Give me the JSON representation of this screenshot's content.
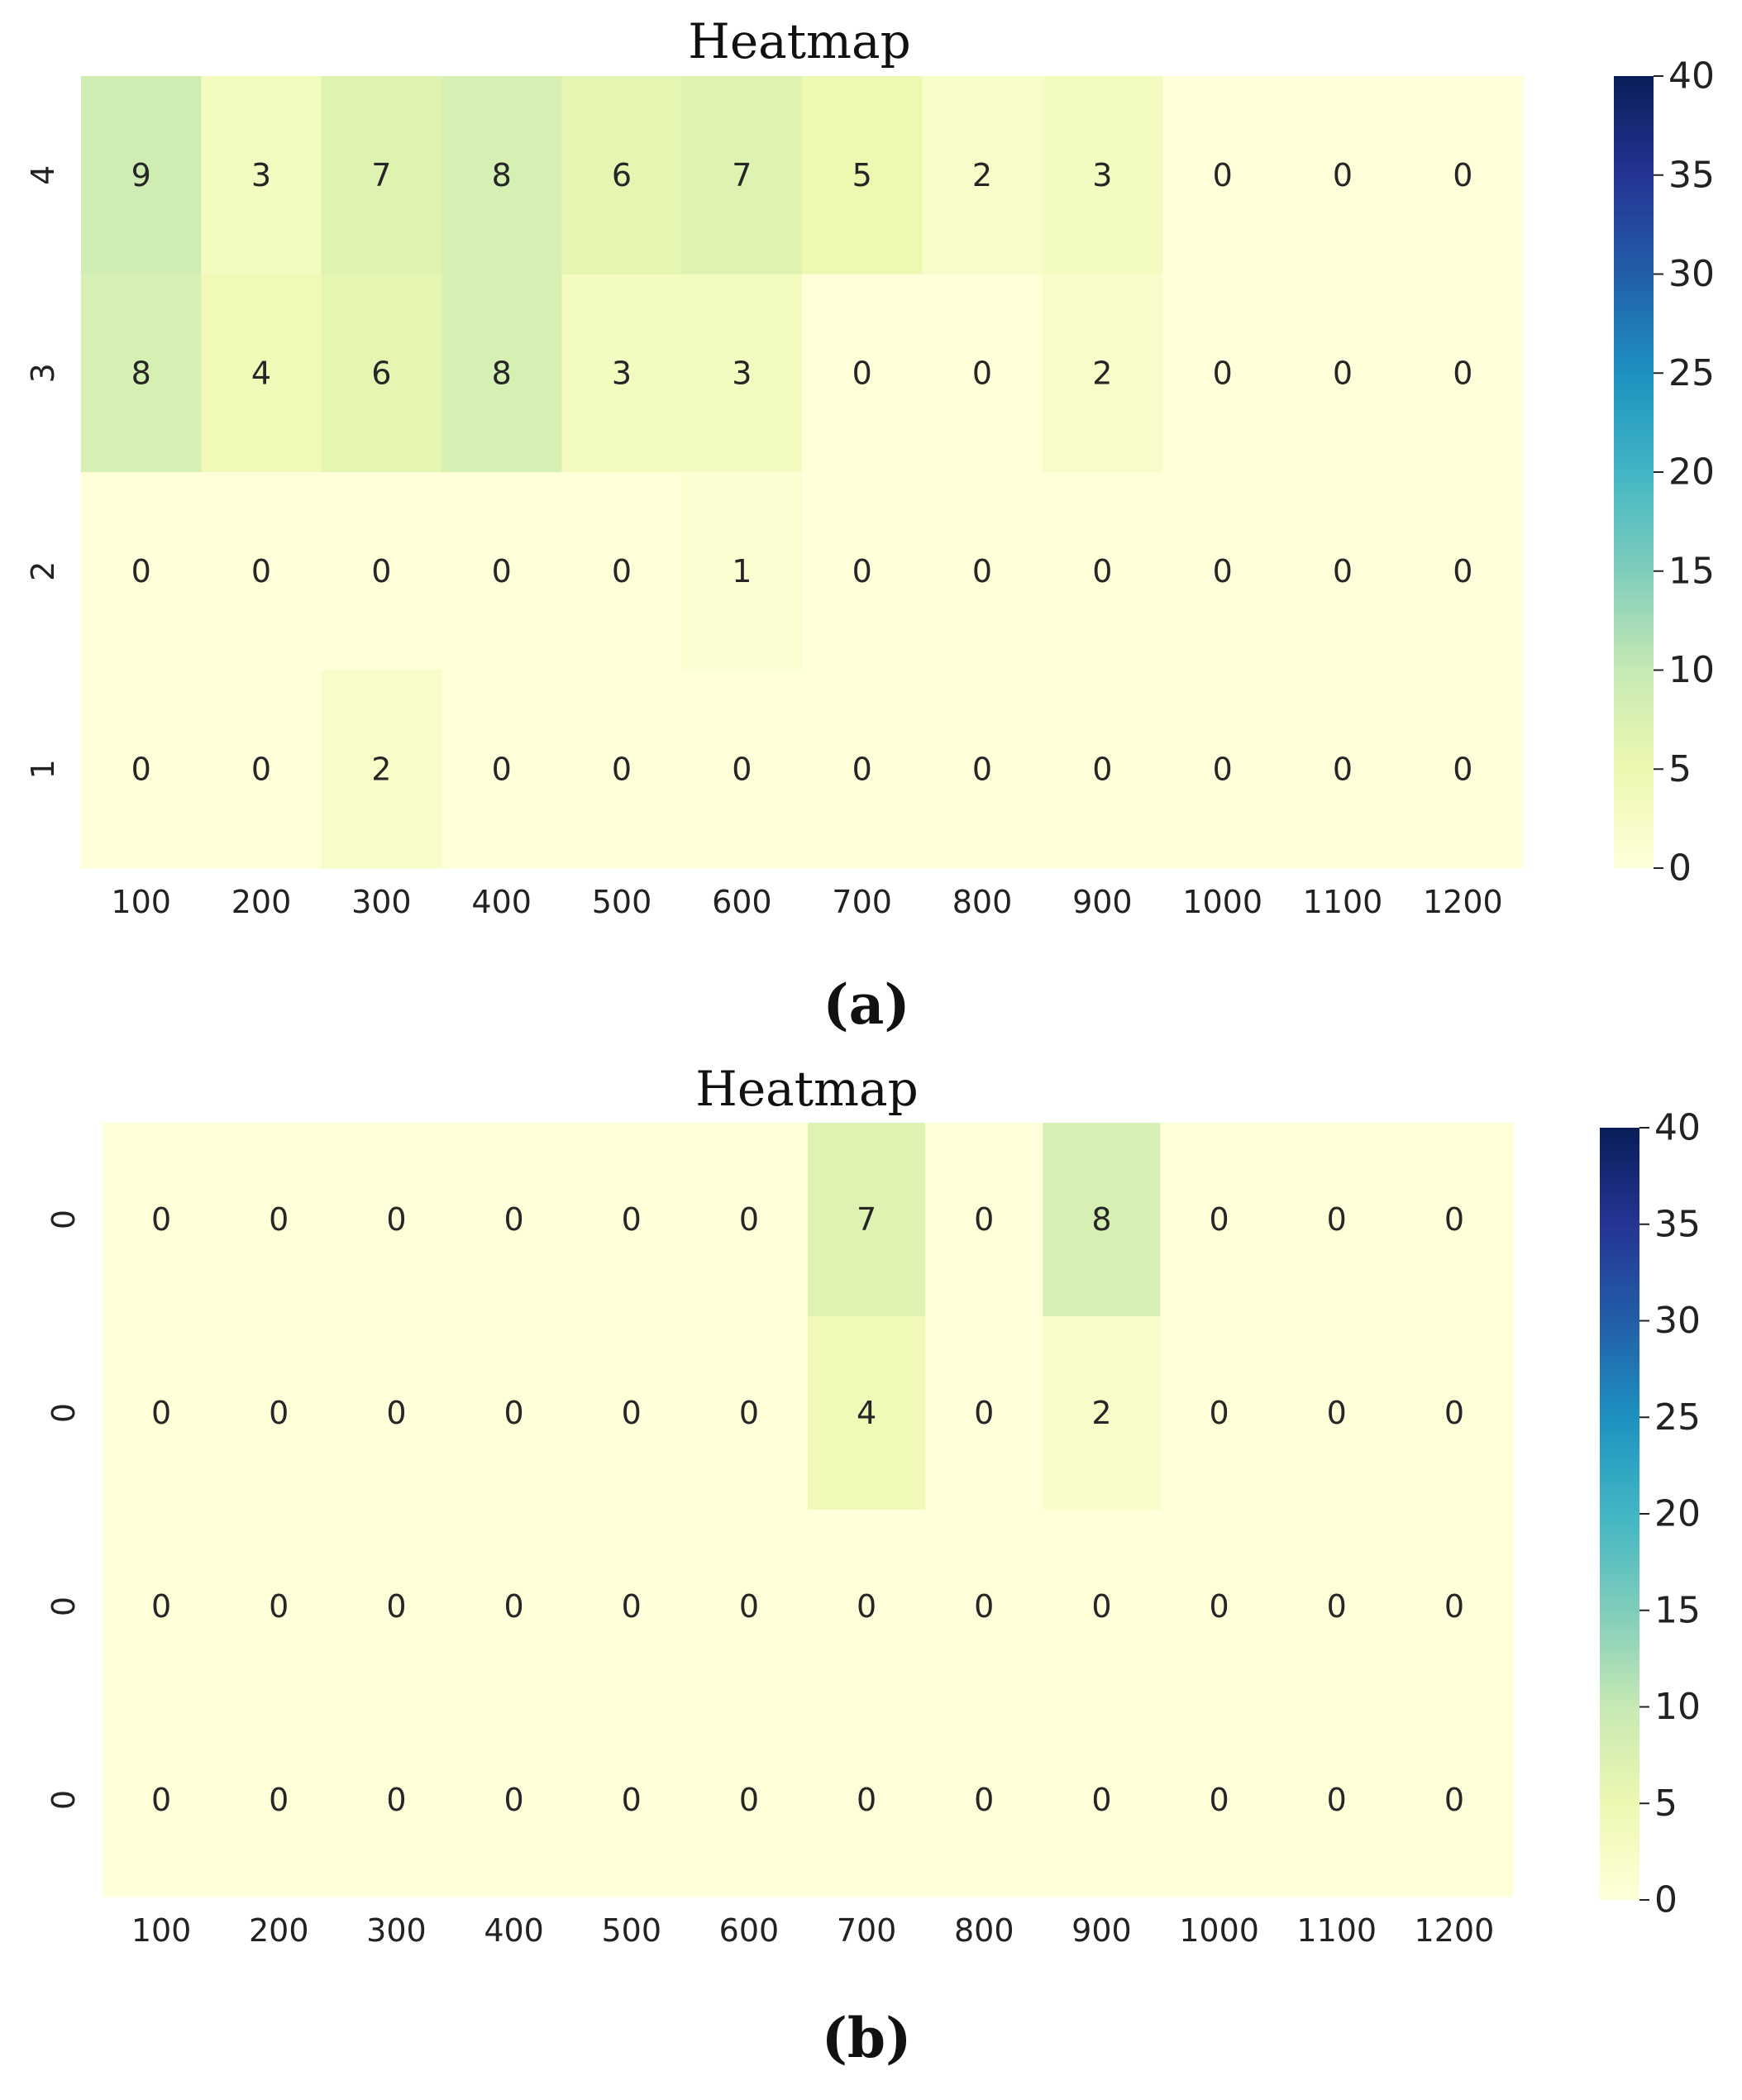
{
  "figure_labels": [
    "(a)",
    "(b)"
  ],
  "colors": {
    "colormap": "YlGnBu",
    "low": "#ffffd9",
    "high": "#081d58"
  },
  "chart_data": [
    {
      "type": "heatmap",
      "title": "Heatmap",
      "x_categories": [
        "100",
        "200",
        "300",
        "400",
        "500",
        "600",
        "700",
        "800",
        "900",
        "1000",
        "1100",
        "1200"
      ],
      "y_categories": [
        "4",
        "3",
        "2",
        "1"
      ],
      "values": [
        [
          9,
          3,
          7,
          8,
          6,
          7,
          5,
          2,
          3,
          0,
          0,
          0
        ],
        [
          8,
          4,
          6,
          8,
          3,
          3,
          0,
          0,
          2,
          0,
          0,
          0
        ],
        [
          0,
          0,
          0,
          0,
          0,
          1,
          0,
          0,
          0,
          0,
          0,
          0
        ],
        [
          0,
          0,
          2,
          0,
          0,
          0,
          0,
          0,
          0,
          0,
          0,
          0
        ]
      ],
      "vmin": 0,
      "vmax": 40,
      "colorbar_ticks": [
        "0",
        "5",
        "10",
        "15",
        "20",
        "25",
        "30",
        "35",
        "40"
      ],
      "annotated": true
    },
    {
      "type": "heatmap",
      "title": "Heatmap",
      "x_categories": [
        "100",
        "200",
        "300",
        "400",
        "500",
        "600",
        "700",
        "800",
        "900",
        "1000",
        "1100",
        "1200"
      ],
      "y_categories": [
        "0",
        "0",
        "0",
        "0"
      ],
      "values": [
        [
          0,
          0,
          0,
          0,
          0,
          0,
          7,
          0,
          8,
          0,
          0,
          0
        ],
        [
          0,
          0,
          0,
          0,
          0,
          0,
          4,
          0,
          2,
          0,
          0,
          0
        ],
        [
          0,
          0,
          0,
          0,
          0,
          0,
          0,
          0,
          0,
          0,
          0,
          0
        ],
        [
          0,
          0,
          0,
          0,
          0,
          0,
          0,
          0,
          0,
          0,
          0,
          0
        ]
      ],
      "vmin": 0,
      "vmax": 40,
      "colorbar_ticks": [
        "0",
        "5",
        "10",
        "15",
        "20",
        "25",
        "30",
        "35",
        "40"
      ],
      "annotated": true
    }
  ]
}
